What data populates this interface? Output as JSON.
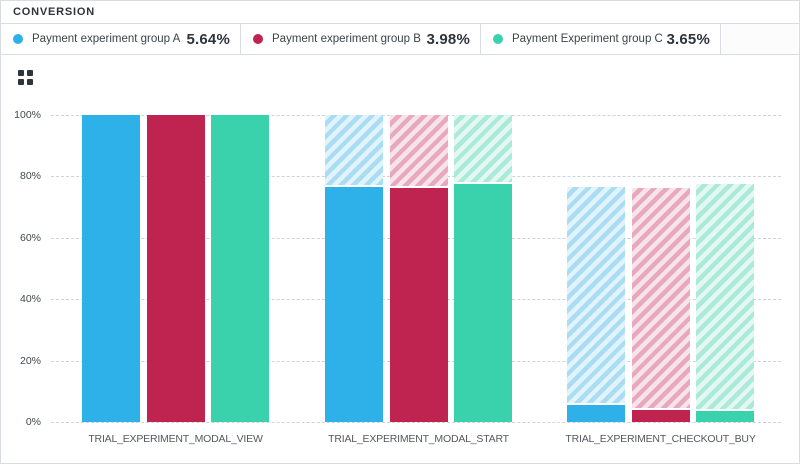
{
  "header": {
    "title": "CONVERSION"
  },
  "legend": {
    "items": [
      {
        "label": "Payment experiment group A",
        "value": "5.64%"
      },
      {
        "label": "Payment experiment group B",
        "value": "3.98%"
      },
      {
        "label": "Payment Experiment group C",
        "value": "3.65%"
      }
    ]
  },
  "chart_data": {
    "type": "bar",
    "title": "CONVERSION",
    "subtype": "funnel-with-dropoff-hatching",
    "categories": [
      "TRIAL_EXPERIMENT_MODAL_VIEW",
      "TRIAL_EXPERIMENT_MODAL_START",
      "TRIAL_EXPERIMENT_CHECKOUT_BUY"
    ],
    "yticks": [
      "100%",
      "80%",
      "60%",
      "40%",
      "20%",
      "0%"
    ],
    "ylim": [
      0,
      100
    ],
    "grid": "dashed horizontal",
    "legend_position": "top",
    "series": [
      {
        "name": "Payment experiment group A",
        "overall_conversion": "5.64%",
        "color": "#2eb0e8",
        "hatch_stripe": "#aadcf4",
        "hatch_bg": "#e1f3fb",
        "values": [
          100,
          76.6,
          5.64
        ],
        "hatch_tops": [
          100,
          100,
          76.6
        ]
      },
      {
        "name": "Payment experiment group B",
        "overall_conversion": "3.98%",
        "color": "#bf2350",
        "hatch_stripe": "#e8a9be",
        "hatch_bg": "#f7e4ea",
        "values": [
          100,
          76.3,
          3.98
        ],
        "hatch_tops": [
          100,
          100,
          76.3
        ]
      },
      {
        "name": "Payment Experiment group C",
        "overall_conversion": "3.65%",
        "color": "#3ad2ad",
        "hatch_stripe": "#abe9d9",
        "hatch_bg": "#e4f8f2",
        "values": [
          100,
          77.4,
          3.65
        ],
        "hatch_tops": [
          100,
          100,
          77.4
        ]
      }
    ]
  }
}
